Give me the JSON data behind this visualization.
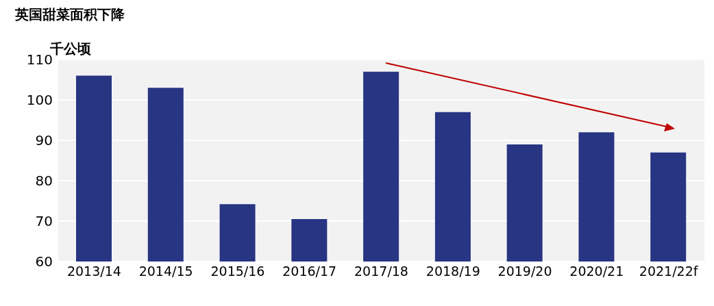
{
  "chart_data": {
    "type": "bar",
    "title": "英国甜菜面积下降",
    "ylabel": "千公顷",
    "categories": [
      "2013/14",
      "2014/15",
      "2015/16",
      "2016/17",
      "2017/18",
      "2018/19",
      "2019/20",
      "2020/21",
      "2021/22f"
    ],
    "values": [
      106,
      103,
      74.2,
      70.5,
      107,
      97,
      89,
      92,
      87
    ],
    "color": "#283583",
    "ylim": [
      60,
      110
    ],
    "yticks": [
      60,
      70,
      80,
      90,
      100,
      110
    ],
    "grid": "y",
    "legend": false
  }
}
